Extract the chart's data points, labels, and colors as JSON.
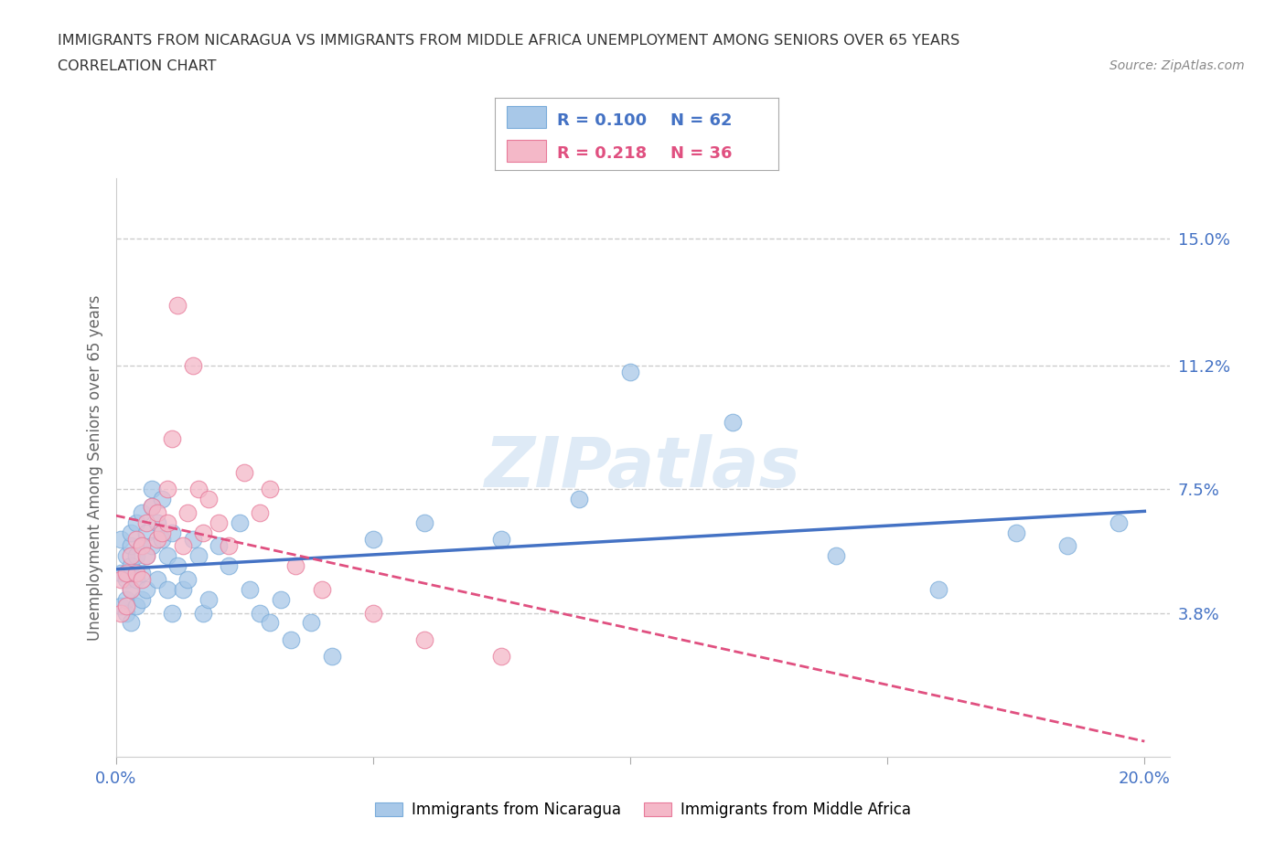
{
  "title_line1": "IMMIGRANTS FROM NICARAGUA VS IMMIGRANTS FROM MIDDLE AFRICA UNEMPLOYMENT AMONG SENIORS OVER 65 YEARS",
  "title_line2": "CORRELATION CHART",
  "source": "Source: ZipAtlas.com",
  "ylabel": "Unemployment Among Seniors over 65 years",
  "xlim": [
    0.0,
    0.205
  ],
  "ylim": [
    -0.005,
    0.168
  ],
  "right_yticks": [
    0.038,
    0.075,
    0.112,
    0.15
  ],
  "right_yticklabels": [
    "3.8%",
    "7.5%",
    "11.2%",
    "15.0%"
  ],
  "nicaragua_R": 0.1,
  "nicaragua_N": 62,
  "nicaragua_color": "#a8c8e8",
  "nicaragua_edge_color": "#7aacda",
  "nicaragua_line_color": "#4472c4",
  "middle_africa_R": 0.218,
  "middle_africa_N": 36,
  "middle_africa_color": "#f4b8c8",
  "middle_africa_edge_color": "#e87a9a",
  "middle_africa_line_color": "#e05080",
  "nicaragua_x": [
    0.001,
    0.001,
    0.001,
    0.002,
    0.002,
    0.002,
    0.002,
    0.003,
    0.003,
    0.003,
    0.003,
    0.003,
    0.004,
    0.004,
    0.004,
    0.004,
    0.005,
    0.005,
    0.005,
    0.005,
    0.006,
    0.006,
    0.006,
    0.007,
    0.007,
    0.007,
    0.008,
    0.008,
    0.009,
    0.009,
    0.01,
    0.01,
    0.011,
    0.011,
    0.012,
    0.013,
    0.014,
    0.015,
    0.016,
    0.017,
    0.018,
    0.02,
    0.022,
    0.024,
    0.026,
    0.028,
    0.03,
    0.032,
    0.034,
    0.038,
    0.042,
    0.05,
    0.06,
    0.075,
    0.09,
    0.1,
    0.12,
    0.14,
    0.16,
    0.175,
    0.185,
    0.195
  ],
  "nicaragua_y": [
    0.05,
    0.06,
    0.04,
    0.048,
    0.055,
    0.038,
    0.042,
    0.052,
    0.045,
    0.035,
    0.058,
    0.062,
    0.055,
    0.04,
    0.048,
    0.065,
    0.05,
    0.042,
    0.058,
    0.068,
    0.055,
    0.045,
    0.062,
    0.075,
    0.058,
    0.07,
    0.065,
    0.048,
    0.072,
    0.06,
    0.055,
    0.045,
    0.062,
    0.038,
    0.052,
    0.045,
    0.048,
    0.06,
    0.055,
    0.038,
    0.042,
    0.058,
    0.052,
    0.065,
    0.045,
    0.038,
    0.035,
    0.042,
    0.03,
    0.035,
    0.025,
    0.06,
    0.065,
    0.06,
    0.072,
    0.11,
    0.095,
    0.055,
    0.045,
    0.062,
    0.058,
    0.065
  ],
  "middle_africa_x": [
    0.001,
    0.001,
    0.002,
    0.002,
    0.003,
    0.003,
    0.004,
    0.004,
    0.005,
    0.005,
    0.006,
    0.006,
    0.007,
    0.008,
    0.008,
    0.009,
    0.01,
    0.01,
    0.011,
    0.012,
    0.013,
    0.014,
    0.015,
    0.016,
    0.017,
    0.018,
    0.02,
    0.022,
    0.025,
    0.028,
    0.03,
    0.035,
    0.04,
    0.05,
    0.06,
    0.075
  ],
  "middle_africa_y": [
    0.048,
    0.038,
    0.05,
    0.04,
    0.055,
    0.045,
    0.06,
    0.05,
    0.058,
    0.048,
    0.065,
    0.055,
    0.07,
    0.06,
    0.068,
    0.062,
    0.075,
    0.065,
    0.09,
    0.13,
    0.058,
    0.068,
    0.112,
    0.075,
    0.062,
    0.072,
    0.065,
    0.058,
    0.08,
    0.068,
    0.075,
    0.052,
    0.045,
    0.038,
    0.03,
    0.025
  ],
  "watermark": "ZIPatlas",
  "background_color": "#ffffff",
  "grid_color": "#cccccc",
  "title_color": "#333333",
  "axis_label_color": "#666666",
  "tick_color": "#4472c4"
}
